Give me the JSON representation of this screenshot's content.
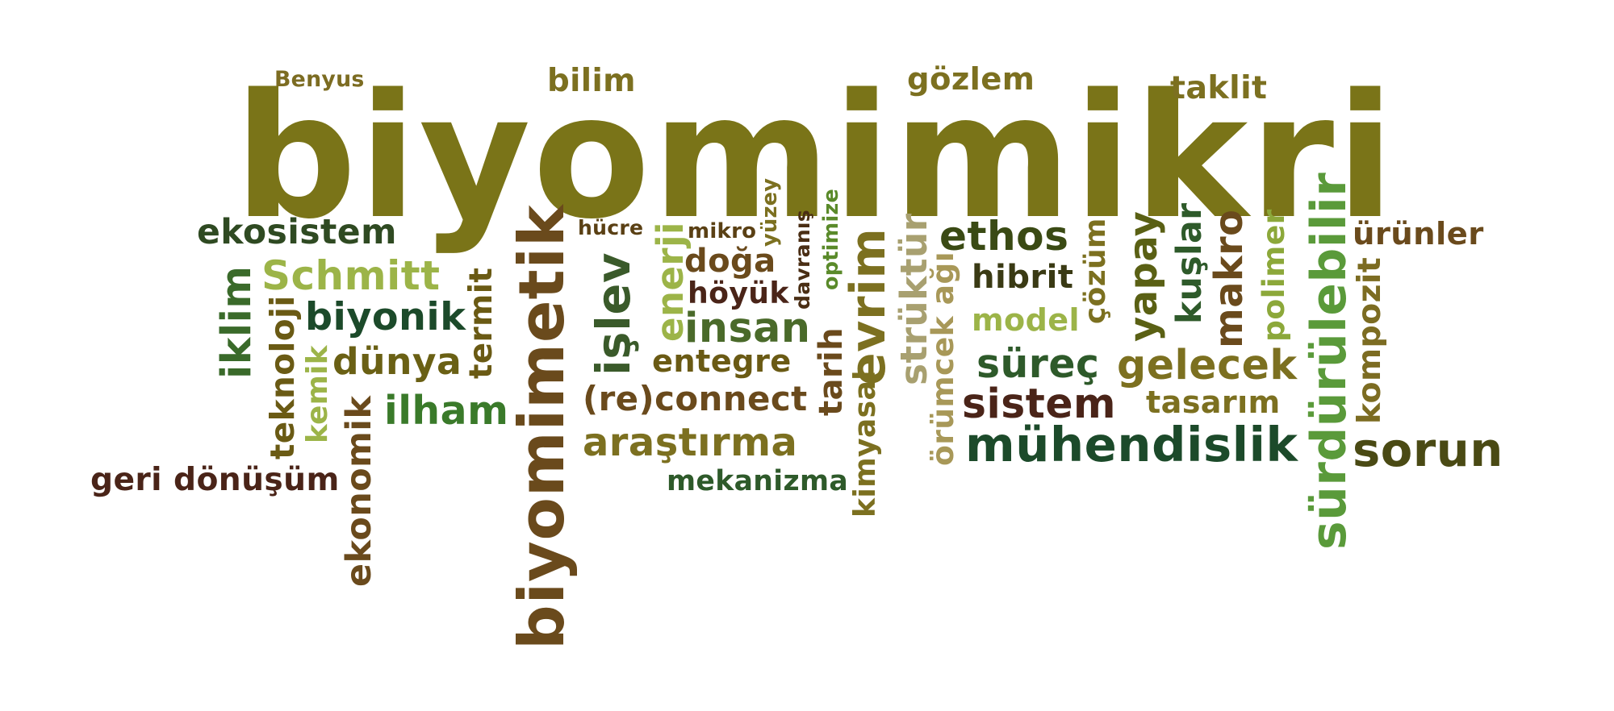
{
  "words": [
    {
      "text": "biyomimikri",
      "color": "#7a7418"
    },
    {
      "text": "Benyus",
      "color": "#7c6c22"
    },
    {
      "text": "bilim",
      "color": "#7c7020"
    },
    {
      "text": "gözlem",
      "color": "#7c7020"
    },
    {
      "text": "taklit",
      "color": "#7c7020"
    },
    {
      "text": "ekosistem",
      "color": "#2f4a22"
    },
    {
      "text": "hücre",
      "color": "#5a4014"
    },
    {
      "text": "mikro",
      "color": "#5a4014"
    },
    {
      "text": "yüzey",
      "color": "#7c7020"
    },
    {
      "text": "davranış",
      "color": "#4a2e14"
    },
    {
      "text": "optimize",
      "color": "#5a8a2a"
    },
    {
      "text": "ethos",
      "color": "#3a4a14"
    },
    {
      "text": "ürünler",
      "color": "#6a4a1c"
    },
    {
      "text": "Schmitt",
      "color": "#9cb448"
    },
    {
      "text": "doğa",
      "color": "#6a4a1c"
    },
    {
      "text": "höyük",
      "color": "#4a2418"
    },
    {
      "text": "hibrit",
      "color": "#3a3a14"
    },
    {
      "text": "iklim",
      "color": "#3a6a2a"
    },
    {
      "text": "biyonik",
      "color": "#1c4a2a"
    },
    {
      "text": "insan",
      "color": "#4a6a2a"
    },
    {
      "text": "model",
      "color": "#9cb448"
    },
    {
      "text": "dünya",
      "color": "#6a6014"
    },
    {
      "text": "entegre",
      "color": "#6a5a14"
    },
    {
      "text": "süreç",
      "color": "#2e5a2a"
    },
    {
      "text": "gelecek",
      "color": "#7c7020"
    },
    {
      "text": "(re)connect",
      "color": "#6a4a1c"
    },
    {
      "text": "sistem",
      "color": "#4a2418"
    },
    {
      "text": "tasarım",
      "color": "#7c7020"
    },
    {
      "text": "ilham",
      "color": "#3a7a2a"
    },
    {
      "text": "mühendislik",
      "color": "#1c4a2a"
    },
    {
      "text": "sorun",
      "color": "#4a4a14"
    },
    {
      "text": "araştırma",
      "color": "#7c7020"
    },
    {
      "text": "geri dönüşüm",
      "color": "#4a2418"
    },
    {
      "text": "mekanizma",
      "color": "#2e5a2a"
    },
    {
      "text": "biyomimetik",
      "color": "#6a4a1c"
    },
    {
      "text": "işlev",
      "color": "#3a5a2a"
    },
    {
      "text": "enerji",
      "color": "#9cb448"
    },
    {
      "text": "teknoloji",
      "color": "#6a5a14"
    },
    {
      "text": "kemik",
      "color": "#9cb448"
    },
    {
      "text": "ekonomik",
      "color": "#6a4a1c"
    },
    {
      "text": "termit",
      "color": "#6a5a14"
    },
    {
      "text": "tarih",
      "color": "#6a4a1c"
    },
    {
      "text": "evrim",
      "color": "#7c7020"
    },
    {
      "text": "kimyasal",
      "color": "#7c7020"
    },
    {
      "text": "strüktür",
      "color": "#a8a070"
    },
    {
      "text": "örümcek ağı",
      "color": "#a89858"
    },
    {
      "text": "çözüm",
      "color": "#7c7020"
    },
    {
      "text": "yapay",
      "color": "#5a6014"
    },
    {
      "text": "kuşlar",
      "color": "#2e5a2a"
    },
    {
      "text": "makro",
      "color": "#6a4a1c"
    },
    {
      "text": "polimer",
      "color": "#8ca83a"
    },
    {
      "text": "sürdürülebilir",
      "color": "#5a9a3a"
    },
    {
      "text": "kompozit",
      "color": "#7c6c22"
    }
  ]
}
